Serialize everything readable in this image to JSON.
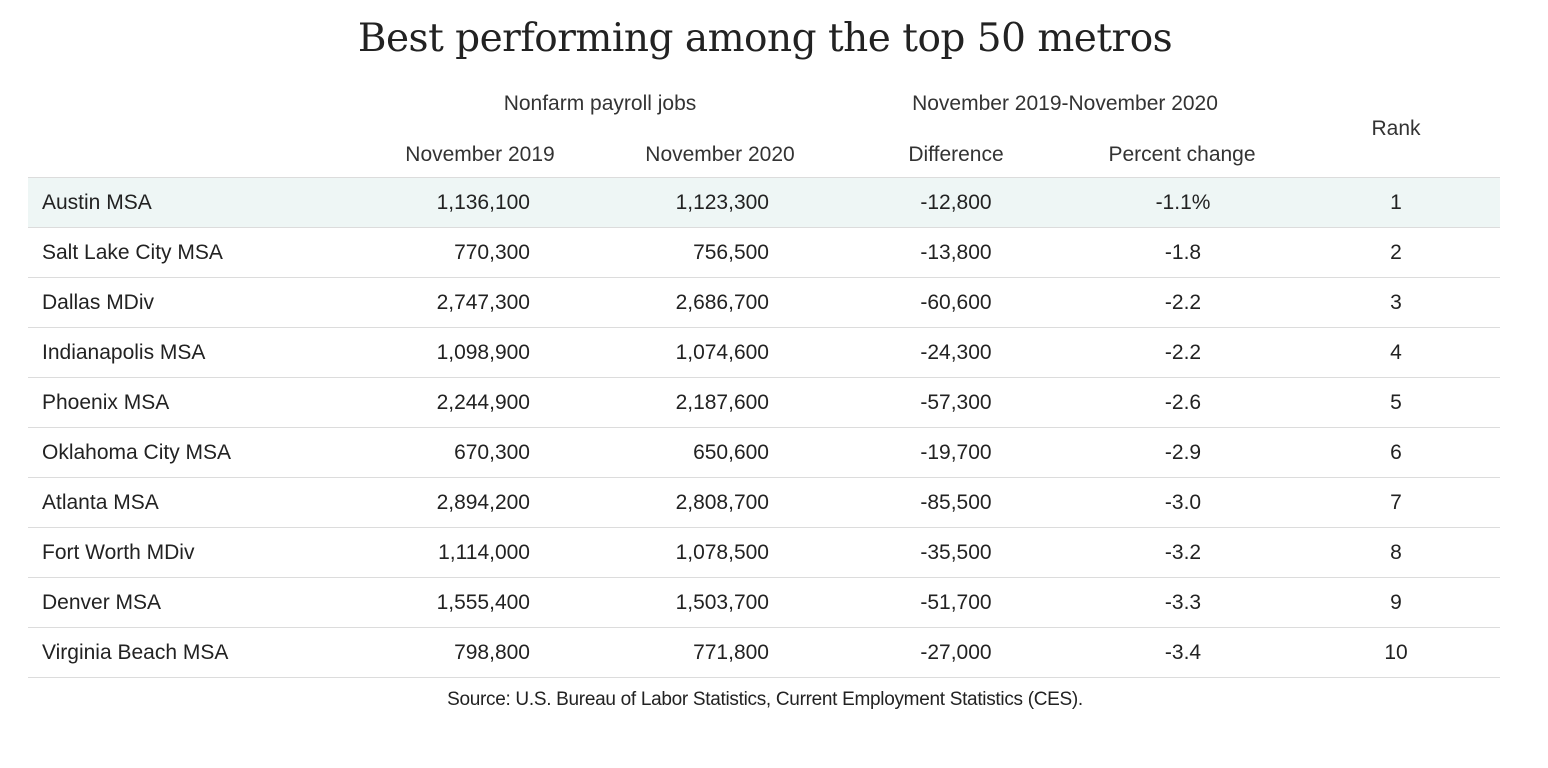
{
  "chart_data": {
    "type": "table",
    "title": "Best performing among the top 50 metros",
    "group_headers": {
      "payroll": "Nonfarm  payroll jobs",
      "change": "November 2019-November 2020"
    },
    "columns": {
      "nov2019": "November 2019",
      "nov2020": "November 2020",
      "difference": "Difference",
      "percent_change": "Percent change",
      "rank": "Rank"
    },
    "rows": [
      {
        "metro": "Austin MSA",
        "nov2019": "1,136,100",
        "nov2020": "1,123,300",
        "difference": "-12,800",
        "percent_change": "-1.1%",
        "rank": "1"
      },
      {
        "metro": "Salt Lake City MSA",
        "nov2019": "770,300",
        "nov2020": "756,500",
        "difference": "-13,800",
        "percent_change": "-1.8",
        "rank": "2"
      },
      {
        "metro": "Dallas MDiv",
        "nov2019": "2,747,300",
        "nov2020": "2,686,700",
        "difference": "-60,600",
        "percent_change": "-2.2",
        "rank": "3"
      },
      {
        "metro": "Indianapolis MSA",
        "nov2019": "1,098,900",
        "nov2020": "1,074,600",
        "difference": "-24,300",
        "percent_change": "-2.2",
        "rank": "4"
      },
      {
        "metro": "Phoenix MSA",
        "nov2019": "2,244,900",
        "nov2020": "2,187,600",
        "difference": "-57,300",
        "percent_change": "-2.6",
        "rank": "5"
      },
      {
        "metro": "Oklahoma  City MSA",
        "nov2019": "670,300",
        "nov2020": "650,600",
        "difference": "-19,700",
        "percent_change": "-2.9",
        "rank": "6"
      },
      {
        "metro": "Atlanta MSA",
        "nov2019": "2,894,200",
        "nov2020": "2,808,700",
        "difference": "-85,500",
        "percent_change": "-3.0",
        "rank": "7"
      },
      {
        "metro": "Fort Worth MDiv",
        "nov2019": "1,114,000",
        "nov2020": "1,078,500",
        "difference": "-35,500",
        "percent_change": "-3.2",
        "rank": "8"
      },
      {
        "metro": "Denver MSA",
        "nov2019": "1,555,400",
        "nov2020": "1,503,700",
        "difference": "-51,700",
        "percent_change": "-3.3",
        "rank": "9"
      },
      {
        "metro": "Virginia Beach MSA",
        "nov2019": "798,800",
        "nov2020": "771,800",
        "difference": "-27,000",
        "percent_change": "-3.4",
        "rank": "10"
      }
    ],
    "source": "Source:  U.S. Bureau of Labor Statistics, Current Employment Statistics (CES)."
  },
  "colors": {
    "highlight_row": "#eef6f5",
    "row_divider": "#dcdcdc",
    "text": "#222222"
  }
}
